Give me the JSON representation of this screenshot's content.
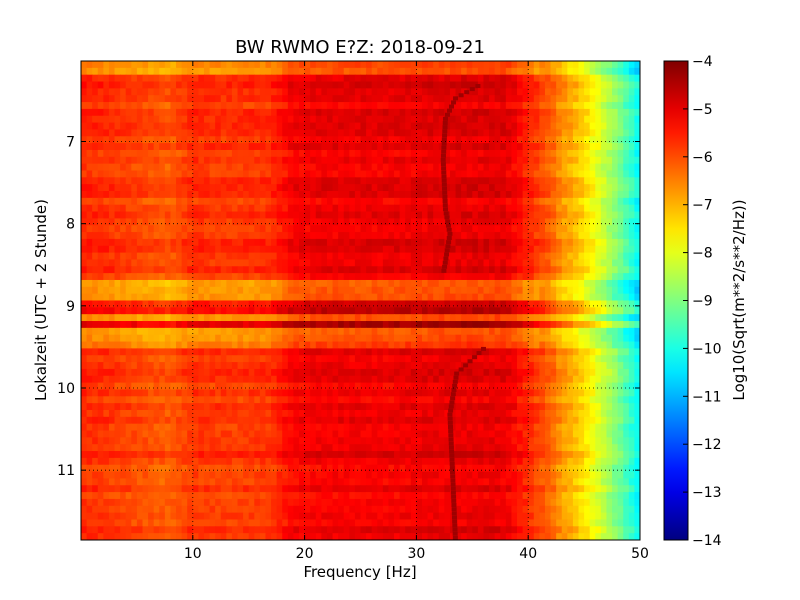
{
  "chart_data": {
    "type": "heatmap",
    "title": "BW RWMO E?Z: 2018-09-21",
    "xlabel": "Frequency [Hz]",
    "ylabel": "Lokalzeit (UTC + 2 Stunde)",
    "xlim": [
      0,
      50
    ],
    "ylim": [
      6.02,
      11.85
    ],
    "y_inverted": true,
    "grid": true,
    "colormap": "jet",
    "x_ticks": [
      {
        "value": 10,
        "label": "10"
      },
      {
        "value": 20,
        "label": "20"
      },
      {
        "value": 30,
        "label": "30"
      },
      {
        "value": 40,
        "label": "40"
      },
      {
        "value": 50,
        "label": "50"
      }
    ],
    "y_ticks": [
      {
        "value": 7,
        "label": "7"
      },
      {
        "value": 8,
        "label": "8"
      },
      {
        "value": 9,
        "label": "9"
      },
      {
        "value": 10,
        "label": "10"
      },
      {
        "value": 11,
        "label": "11"
      }
    ],
    "colorbar": {
      "label": "Log10(Sqrt(m**2/s**2/Hz))",
      "range": [
        -14,
        -4
      ],
      "ticks": [
        {
          "value": -4,
          "label": "−4"
        },
        {
          "value": -5,
          "label": "−5"
        },
        {
          "value": -6,
          "label": "−6"
        },
        {
          "value": -7,
          "label": "−7"
        },
        {
          "value": -8,
          "label": "−8"
        },
        {
          "value": -9,
          "label": "−9"
        },
        {
          "value": -10,
          "label": "−10"
        },
        {
          "value": -11,
          "label": "−11"
        },
        {
          "value": -12,
          "label": "−12"
        },
        {
          "value": -13,
          "label": "−13"
        },
        {
          "value": -14,
          "label": "−14"
        }
      ]
    },
    "spectral_profile": [
      {
        "f": 0,
        "v": -5.6
      },
      {
        "f": 2,
        "v": -5.7
      },
      {
        "f": 5,
        "v": -5.9
      },
      {
        "f": 8,
        "v": -6.1
      },
      {
        "f": 10,
        "v": -5.7
      },
      {
        "f": 13,
        "v": -5.8
      },
      {
        "f": 17,
        "v": -5.7
      },
      {
        "f": 19,
        "v": -5.2
      },
      {
        "f": 22,
        "v": -5.1
      },
      {
        "f": 28,
        "v": -5.1
      },
      {
        "f": 33,
        "v": -5.0
      },
      {
        "f": 38,
        "v": -5.0
      },
      {
        "f": 40,
        "v": -5.6
      },
      {
        "f": 42,
        "v": -6.2
      },
      {
        "f": 43,
        "v": -6.7
      },
      {
        "f": 44,
        "v": -7.0
      },
      {
        "f": 45,
        "v": -7.4
      },
      {
        "f": 46,
        "v": -7.9
      },
      {
        "f": 47,
        "v": -8.4
      },
      {
        "f": 48,
        "v": -9.0
      },
      {
        "f": 49,
        "v": -9.6
      },
      {
        "f": 50,
        "v": -10.3
      }
    ],
    "time_bands": [
      {
        "t0": 6.02,
        "t1": 6.22,
        "offset": -0.9
      },
      {
        "t0": 8.7,
        "t1": 8.9,
        "offset": -0.9
      },
      {
        "t0": 8.9,
        "t1": 9.12,
        "offset": 0.25
      },
      {
        "t0": 9.12,
        "t1": 9.2,
        "offset": -0.9
      },
      {
        "t0": 9.2,
        "t1": 9.28,
        "offset": 0.6
      },
      {
        "t0": 9.28,
        "t1": 9.5,
        "offset": -0.9
      }
    ],
    "tonal_trace": [
      {
        "t": 6.3,
        "f": 35.5
      },
      {
        "t": 6.45,
        "f": 33.5
      },
      {
        "t": 6.7,
        "f": 32.6
      },
      {
        "t": 7.2,
        "f": 32.4
      },
      {
        "t": 7.8,
        "f": 32.6
      },
      {
        "t": 8.1,
        "f": 33.0
      },
      {
        "t": 8.6,
        "f": 32.4
      },
      {
        "t": 9.5,
        "f": 36.0
      },
      {
        "t": 9.8,
        "f": 33.6
      },
      {
        "t": 10.3,
        "f": 33.0
      },
      {
        "t": 10.9,
        "f": 33.2
      },
      {
        "t": 11.85,
        "f": 33.5
      }
    ],
    "tonal_value": -4.3
  }
}
